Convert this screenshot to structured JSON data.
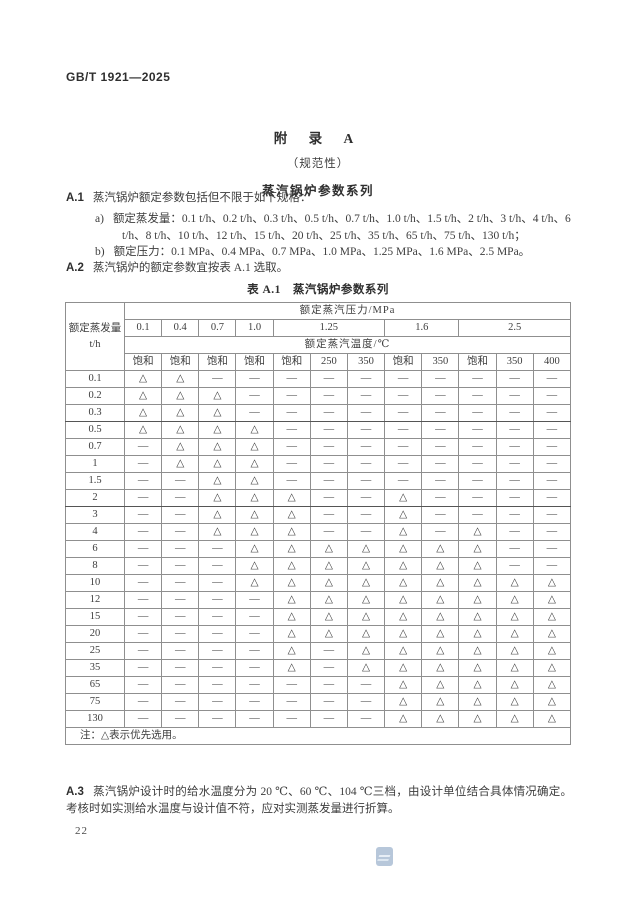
{
  "page": {
    "standard_code": "GB/T 1921—2025",
    "page_number": "22"
  },
  "appendix": {
    "title": "附  录  A",
    "subtitle": "（规范性）",
    "heading": "蒸汽锅炉参数系列"
  },
  "clauses": {
    "a1_label": "A.1",
    "a1_text": "蒸汽锅炉额定参数包括但不限于如下规格：",
    "item_a_label": "a)",
    "item_a_text": "额定蒸发量：0.1 t/h、0.2 t/h、0.3 t/h、0.5 t/h、0.7 t/h、1.0 t/h、1.5 t/h、2 t/h、3 t/h、4 t/h、6 t/h、8 t/h、10 t/h、12 t/h、15 t/h、20 t/h、25 t/h、35 t/h、65 t/h、75 t/h、130 t/h；",
    "item_b_label": "b)",
    "item_b_text": "额定压力：0.1 MPa、0.4 MPa、0.7 MPa、1.0 MPa、1.25 MPa、1.6 MPa、2.5 MPa。",
    "a2_label": "A.2",
    "a2_text": "蒸汽锅炉的额定参数宜按表 A.1 选取。",
    "a3_label": "A.3",
    "a3_text": "蒸汽锅炉设计时的给水温度分为 20 ℃、60 ℃、104 ℃三档，由设计单位结合具体情况确定。考核时如实测给水温度与设计值不符，应对实测蒸发量进行折算。"
  },
  "table": {
    "caption": "表 A.1　蒸汽锅炉参数系列",
    "corner_header_line1": "额定蒸发量",
    "corner_header_line2": "t/h",
    "pressure_header": "额定蒸汽压力/MPa",
    "temperature_header": "额定蒸汽温度/℃",
    "pressures": [
      {
        "label": "0.1",
        "span": 1
      },
      {
        "label": "0.4",
        "span": 1
      },
      {
        "label": "0.7",
        "span": 1
      },
      {
        "label": "1.0",
        "span": 1
      },
      {
        "label": "1.25",
        "span": 3
      },
      {
        "label": "1.6",
        "span": 2
      },
      {
        "label": "2.5",
        "span": 3
      }
    ],
    "temperatures": [
      "饱和",
      "饱和",
      "饱和",
      "饱和",
      "饱和",
      "250",
      "350",
      "饱和",
      "350",
      "饱和",
      "350",
      "400"
    ],
    "symbols": {
      "t": "△",
      "d": "—",
      "f": "—"
    },
    "rows": [
      {
        "evaporation": "0.1",
        "cells": [
          "t",
          "t",
          "d",
          "d",
          "d",
          "d",
          "d",
          "d",
          "d",
          "d",
          "d",
          "d"
        ]
      },
      {
        "evaporation": "0.2",
        "cells": [
          "t",
          "t",
          "t",
          "d",
          "d",
          "d",
          "d",
          "d",
          "d",
          "d",
          "d",
          "d"
        ]
      },
      {
        "evaporation": "0.3",
        "cells": [
          "t",
          "t",
          "t",
          "d",
          "d",
          "d",
          "d",
          "d",
          "d",
          "d",
          "d",
          "d"
        ]
      },
      {
        "evaporation": "0.5",
        "cells": [
          "t",
          "t",
          "t",
          "t",
          "f",
          "f",
          "f",
          "f",
          "f",
          "f",
          "f",
          "f"
        ]
      },
      {
        "evaporation": "0.7",
        "cells": [
          "f",
          "t",
          "t",
          "t",
          "f",
          "f",
          "f",
          "f",
          "f",
          "f",
          "f",
          "f"
        ]
      },
      {
        "evaporation": "1",
        "cells": [
          "d",
          "t",
          "t",
          "t",
          "d",
          "d",
          "d",
          "d",
          "d",
          "d",
          "d",
          "d"
        ]
      },
      {
        "evaporation": "1.5",
        "cells": [
          "d",
          "d",
          "t",
          "t",
          "d",
          "d",
          "d",
          "d",
          "d",
          "d",
          "d",
          "d"
        ]
      },
      {
        "evaporation": "2",
        "cells": [
          "d",
          "d",
          "t",
          "t",
          "t",
          "d",
          "d",
          "t",
          "d",
          "d",
          "d",
          "d"
        ]
      },
      {
        "evaporation": "3",
        "cells": [
          "f",
          "f",
          "t",
          "t",
          "t",
          "f",
          "f",
          "t",
          "f",
          "f",
          "f",
          "f"
        ]
      },
      {
        "evaporation": "4",
        "cells": [
          "f",
          "f",
          "t",
          "t",
          "t",
          "f",
          "f",
          "t",
          "f",
          "t",
          "f",
          "f"
        ]
      },
      {
        "evaporation": "6",
        "cells": [
          "f",
          "f",
          "f",
          "t",
          "t",
          "t",
          "t",
          "t",
          "t",
          "t",
          "f",
          "f"
        ]
      },
      {
        "evaporation": "8",
        "cells": [
          "d",
          "d",
          "d",
          "t",
          "t",
          "t",
          "t",
          "t",
          "t",
          "t",
          "d",
          "d"
        ]
      },
      {
        "evaporation": "10",
        "cells": [
          "d",
          "d",
          "d",
          "t",
          "t",
          "t",
          "t",
          "t",
          "t",
          "t",
          "t",
          "t"
        ]
      },
      {
        "evaporation": "12",
        "cells": [
          "d",
          "d",
          "d",
          "d",
          "t",
          "t",
          "t",
          "t",
          "t",
          "t",
          "t",
          "t"
        ]
      },
      {
        "evaporation": "15",
        "cells": [
          "f",
          "f",
          "f",
          "f",
          "t",
          "t",
          "t",
          "t",
          "t",
          "t",
          "t",
          "t"
        ]
      },
      {
        "evaporation": "20",
        "cells": [
          "f",
          "f",
          "f",
          "f",
          "t",
          "t",
          "t",
          "t",
          "t",
          "t",
          "t",
          "t"
        ]
      },
      {
        "evaporation": "25",
        "cells": [
          "f",
          "f",
          "f",
          "f",
          "t",
          "f",
          "t",
          "t",
          "t",
          "t",
          "t",
          "t"
        ]
      },
      {
        "evaporation": "35",
        "cells": [
          "f",
          "f",
          "f",
          "f",
          "t",
          "f",
          "t",
          "t",
          "t",
          "t",
          "t",
          "t"
        ]
      },
      {
        "evaporation": "65",
        "cells": [
          "f",
          "f",
          "f",
          "f",
          "f",
          "f",
          "f",
          "t",
          "t",
          "t",
          "t",
          "t"
        ]
      },
      {
        "evaporation": "75",
        "cells": [
          "d",
          "d",
          "d",
          "d",
          "d",
          "d",
          "d",
          "t",
          "t",
          "t",
          "t",
          "t"
        ]
      },
      {
        "evaporation": "130",
        "cells": [
          "d",
          "d",
          "d",
          "d",
          "d",
          "d",
          "d",
          "t",
          "t",
          "t",
          "t",
          "t"
        ]
      }
    ],
    "note": "注：△表示优先选用。"
  }
}
